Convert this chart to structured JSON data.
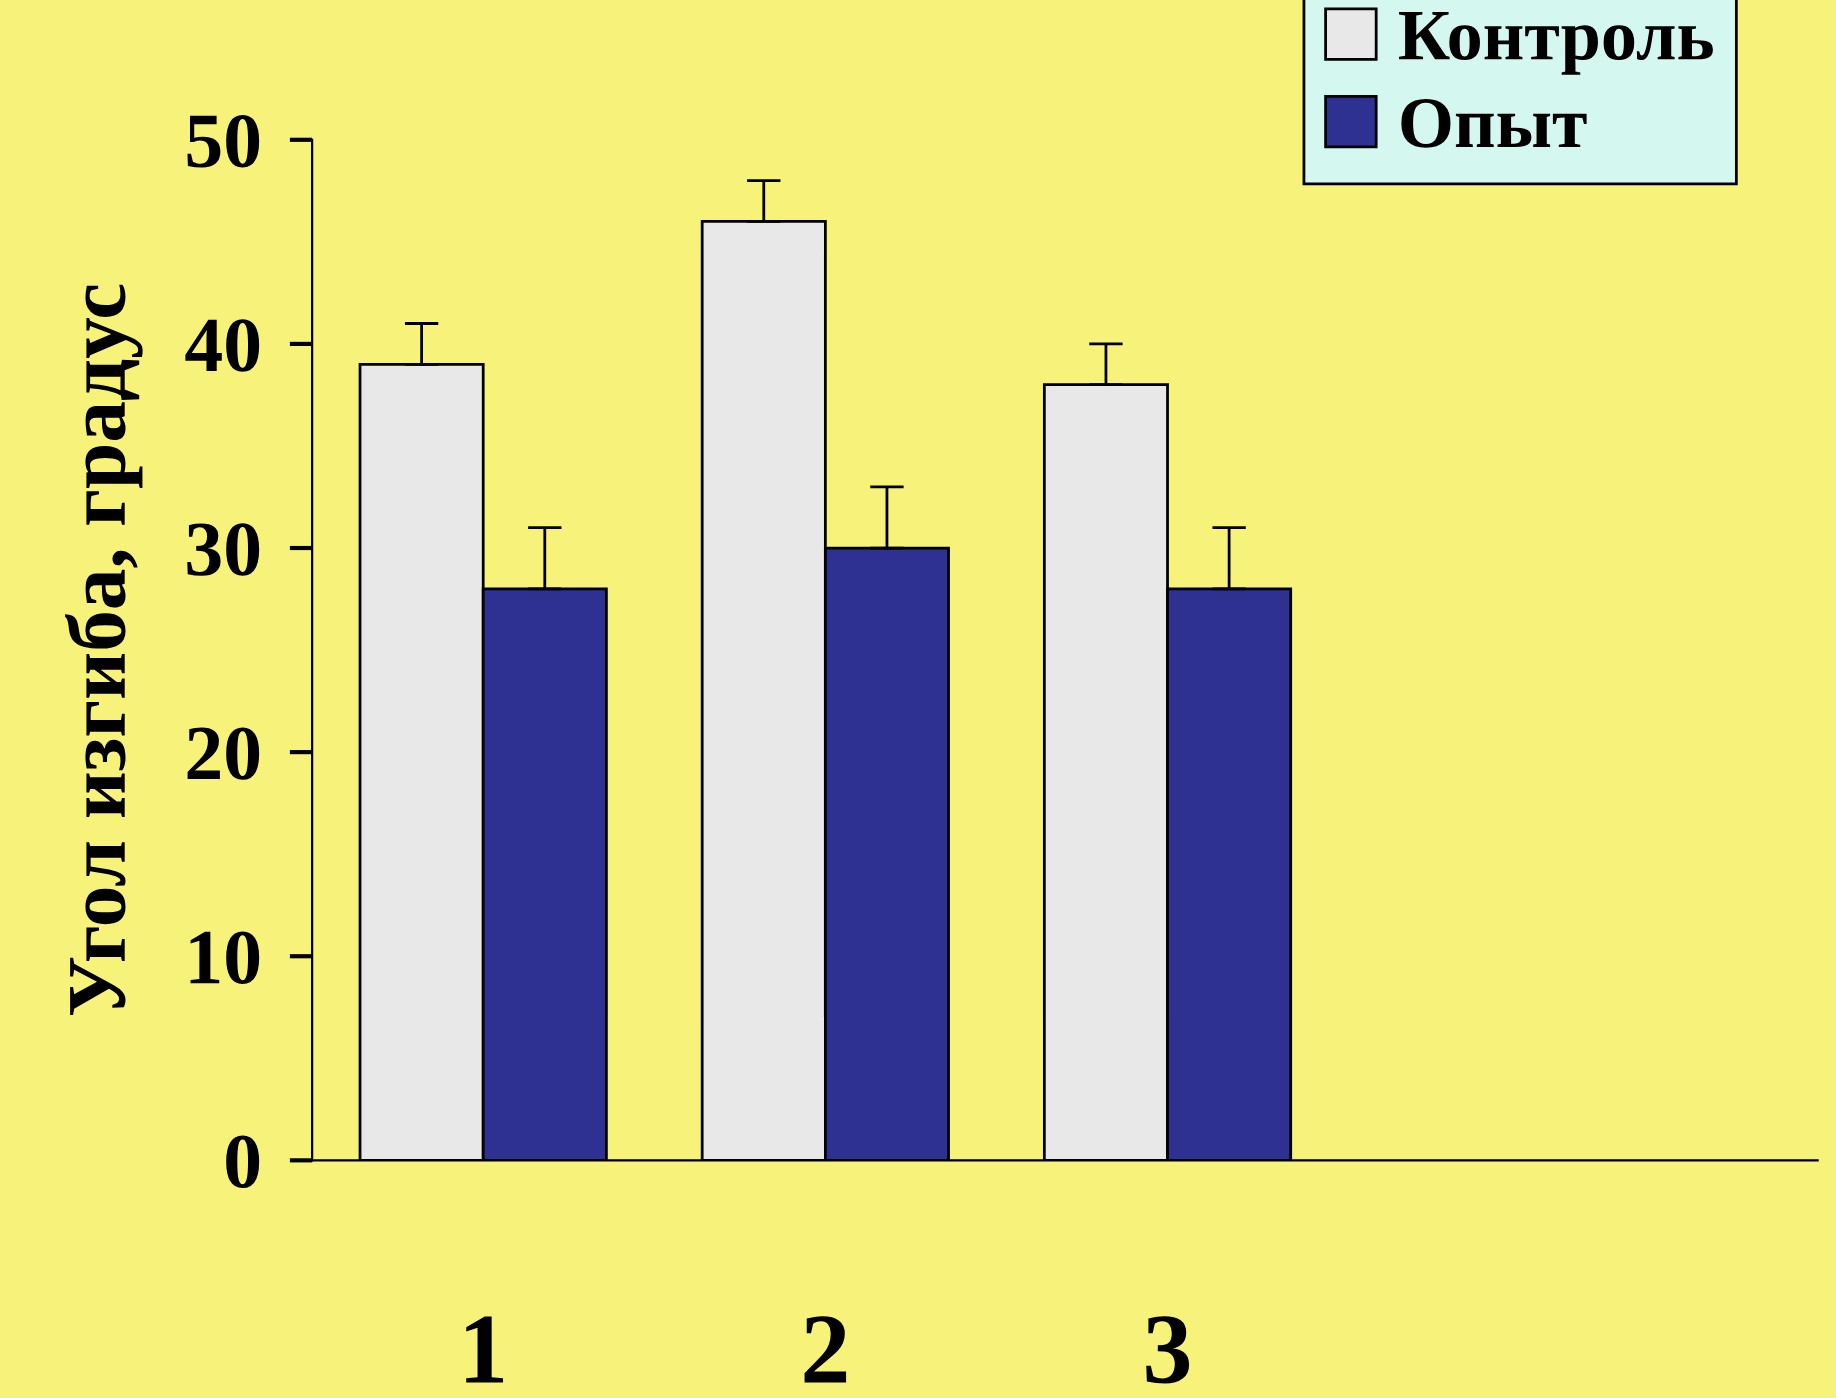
{
  "chart_data": {
    "type": "bar",
    "ylabel": "Угол изгиба, градус",
    "categories": [
      "1",
      "2",
      "3"
    ],
    "series": [
      {
        "name": "Контроль",
        "color": "#e8e8e8",
        "values": [
          39,
          46,
          38
        ],
        "errors": [
          [
            39,
            41
          ],
          [
            46,
            48
          ],
          [
            38,
            40
          ]
        ]
      },
      {
        "name": "Опыт",
        "color": "#2e3192",
        "values": [
          28,
          30,
          28
        ],
        "errors": [
          [
            28,
            31
          ],
          [
            30,
            33
          ],
          [
            28,
            31
          ]
        ]
      }
    ],
    "ylim": [
      0,
      50
    ],
    "yticks": [
      0,
      10,
      20,
      30,
      40,
      50
    ],
    "grid": false,
    "legend": "top right"
  }
}
